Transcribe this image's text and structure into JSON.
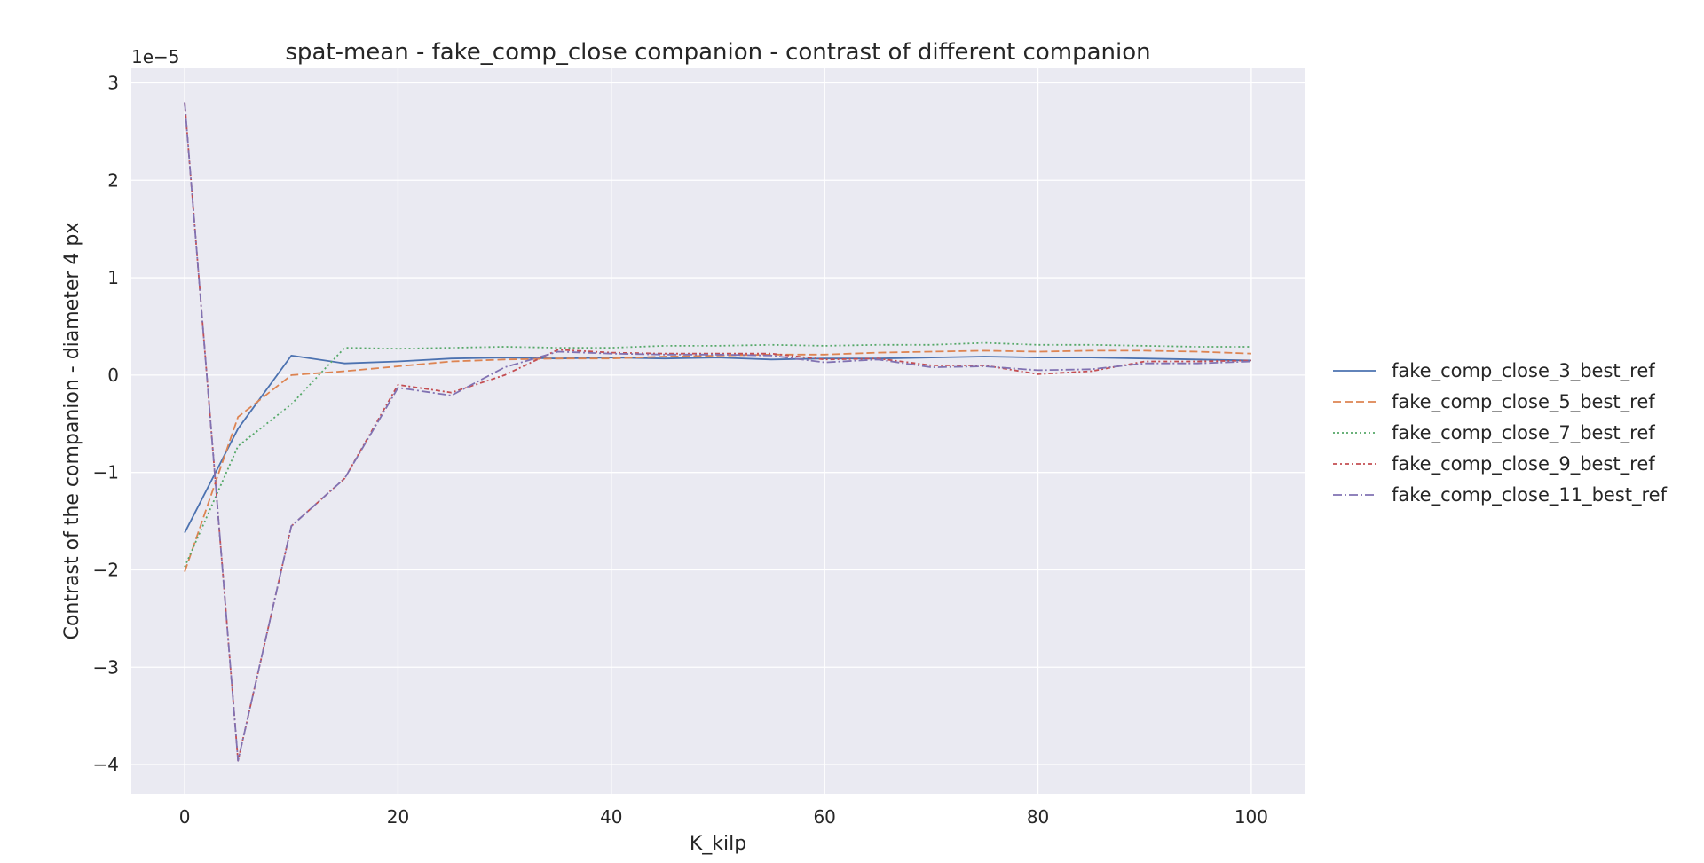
{
  "chart_data": {
    "type": "line",
    "title": "spat-mean - fake_comp_close companion - contrast of different companion",
    "xlabel": "K_kilp",
    "ylabel": "Contrast of the companion - diameter 4 px",
    "offset_text": "1e−5",
    "xlim": [
      -5,
      105
    ],
    "ylim": [
      -4.3,
      3.15
    ],
    "y_scale_factor": 1e-05,
    "xticks": [
      0,
      20,
      40,
      60,
      80,
      100
    ],
    "xtick_labels": [
      "0",
      "20",
      "40",
      "60",
      "80",
      "100"
    ],
    "yticks": [
      3,
      2,
      1,
      0,
      -1,
      -2,
      -3,
      -4
    ],
    "ytick_labels": [
      "3",
      "2",
      "1",
      "0",
      "−1",
      "−2",
      "−3",
      "−4"
    ],
    "grid": true,
    "legend_position": "right",
    "x": [
      0,
      5,
      10,
      15,
      20,
      25,
      30,
      35,
      40,
      45,
      50,
      55,
      60,
      65,
      70,
      75,
      80,
      85,
      90,
      95,
      100
    ],
    "series": [
      {
        "name": "fake_comp_close_3_best_ref",
        "color": "#4c72b0",
        "dash": "",
        "values": [
          -1.62,
          -0.55,
          0.2,
          0.12,
          0.14,
          0.17,
          0.18,
          0.17,
          0.18,
          0.17,
          0.18,
          0.16,
          0.17,
          0.17,
          0.18,
          0.19,
          0.18,
          0.18,
          0.17,
          0.16,
          0.15
        ]
      },
      {
        "name": "fake_comp_close_5_best_ref",
        "color": "#dd8452",
        "dash": "9,4",
        "values": [
          -2.02,
          -0.43,
          0.0,
          0.04,
          0.09,
          0.14,
          0.16,
          0.17,
          0.17,
          0.19,
          0.2,
          0.21,
          0.21,
          0.23,
          0.24,
          0.25,
          0.24,
          0.25,
          0.25,
          0.24,
          0.22
        ]
      },
      {
        "name": "fake_comp_close_7_best_ref",
        "color": "#55a868",
        "dash": "2,3",
        "values": [
          -1.97,
          -0.73,
          -0.3,
          0.28,
          0.27,
          0.28,
          0.29,
          0.28,
          0.28,
          0.3,
          0.3,
          0.31,
          0.3,
          0.31,
          0.31,
          0.33,
          0.31,
          0.31,
          0.3,
          0.29,
          0.29
        ]
      },
      {
        "name": "fake_comp_close_9_best_ref",
        "color": "#c44e52",
        "dash": "5,3,2,3",
        "values": [
          2.8,
          -3.96,
          -1.55,
          -1.06,
          -0.1,
          -0.18,
          0.0,
          0.26,
          0.23,
          0.22,
          0.22,
          0.22,
          0.16,
          0.17,
          0.1,
          0.1,
          0.01,
          0.04,
          0.14,
          0.14,
          0.15
        ]
      },
      {
        "name": "fake_comp_close_11_best_ref",
        "color": "#8172b2",
        "dash": "10,3,2,3",
        "values": [
          2.8,
          -3.96,
          -1.55,
          -1.06,
          -0.13,
          -0.21,
          0.08,
          0.24,
          0.22,
          0.21,
          0.21,
          0.2,
          0.13,
          0.16,
          0.08,
          0.09,
          0.05,
          0.06,
          0.12,
          0.12,
          0.14
        ]
      }
    ]
  }
}
